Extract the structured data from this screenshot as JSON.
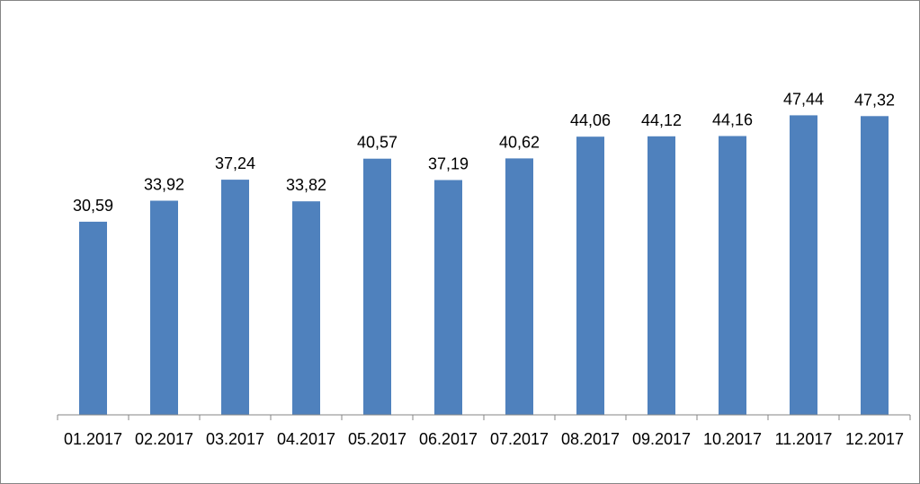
{
  "chart_data": {
    "type": "bar",
    "categories": [
      "01.2017",
      "02.2017",
      "03.2017",
      "04.2017",
      "05.2017",
      "06.2017",
      "07.2017",
      "08.2017",
      "09.2017",
      "10.2017",
      "11.2017",
      "12.2017"
    ],
    "values": [
      30.59,
      33.92,
      37.24,
      33.82,
      40.57,
      37.19,
      40.62,
      44.06,
      44.12,
      44.16,
      47.44,
      47.32
    ],
    "data_labels": [
      "30,59",
      "33,92",
      "37,24",
      "33,82",
      "40,57",
      "37,19",
      "40,62",
      "44,06",
      "44,12",
      "44,16",
      "47,44",
      "47,32"
    ],
    "title": "",
    "xlabel": "",
    "ylabel": "",
    "ylim": [
      0,
      47.5
    ],
    "grid": false,
    "legend": "none",
    "bar_color": "#4f81bd",
    "axis_color": "#868686"
  }
}
